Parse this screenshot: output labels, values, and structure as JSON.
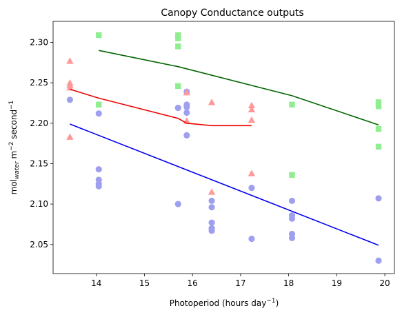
{
  "chart_data": {
    "type": "scatter",
    "title": "Canopy Conductance outputs",
    "xlabel": "Photoperiod (hours day",
    "xlabel_sup": "−1",
    "xlabel_close": ")",
    "ylabel": {
      "base": "mol",
      "sub": "water",
      "mid": " m",
      "sup1": "−2",
      "mid2": " second",
      "sup2": "−1"
    },
    "xlim": [
      13.1,
      20.2
    ],
    "ylim": [
      2.014,
      2.326
    ],
    "x_ticks": [
      14,
      15,
      16,
      17,
      18,
      19,
      20
    ],
    "y_ticks": [
      2.05,
      2.1,
      2.15,
      2.2,
      2.25,
      2.3
    ],
    "y_tick_labels": [
      "2.05",
      "2.10",
      "2.15",
      "2.20",
      "2.25",
      "2.30"
    ],
    "grid": false,
    "legend": "none",
    "series": [
      {
        "marker": "circle",
        "color": "#9f9fef",
        "points": [
          [
            13.45,
            2.229
          ],
          [
            14.05,
            2.212
          ],
          [
            14.05,
            2.143
          ],
          [
            14.05,
            2.13
          ],
          [
            14.05,
            2.125
          ],
          [
            14.05,
            2.122
          ],
          [
            15.7,
            2.219
          ],
          [
            15.7,
            2.1
          ],
          [
            15.88,
            2.239
          ],
          [
            15.88,
            2.223
          ],
          [
            15.88,
            2.22
          ],
          [
            15.88,
            2.213
          ],
          [
            15.88,
            2.185
          ],
          [
            16.4,
            2.104
          ],
          [
            16.4,
            2.096
          ],
          [
            16.4,
            2.077
          ],
          [
            16.4,
            2.07
          ],
          [
            16.4,
            2.067
          ],
          [
            17.23,
            2.12
          ],
          [
            17.23,
            2.057
          ],
          [
            18.07,
            2.104
          ],
          [
            18.07,
            2.086
          ],
          [
            18.07,
            2.082
          ],
          [
            18.07,
            2.063
          ],
          [
            18.07,
            2.058
          ],
          [
            19.87,
            2.107
          ],
          [
            19.87,
            2.03
          ]
        ]
      },
      {
        "marker": "triangle",
        "color": "#ff9999",
        "points": [
          [
            13.45,
            2.277
          ],
          [
            13.45,
            2.25
          ],
          [
            13.45,
            2.247
          ],
          [
            13.45,
            2.244
          ],
          [
            13.45,
            2.183
          ],
          [
            15.88,
            2.238
          ],
          [
            15.88,
            2.203
          ],
          [
            16.4,
            2.226
          ],
          [
            16.4,
            2.115
          ],
          [
            17.23,
            2.222
          ],
          [
            17.23,
            2.217
          ],
          [
            17.23,
            2.204
          ],
          [
            17.23,
            2.138
          ]
        ]
      },
      {
        "marker": "square",
        "color": "#90ee90",
        "points": [
          [
            14.05,
            2.309
          ],
          [
            14.05,
            2.223
          ],
          [
            15.7,
            2.309
          ],
          [
            15.7,
            2.305
          ],
          [
            15.7,
            2.295
          ],
          [
            15.7,
            2.246
          ],
          [
            18.07,
            2.223
          ],
          [
            18.07,
            2.136
          ],
          [
            19.87,
            2.226
          ],
          [
            19.87,
            2.221
          ],
          [
            19.87,
            2.193
          ],
          [
            19.87,
            2.171
          ]
        ]
      }
    ],
    "lines": [
      {
        "color": "#0000ee",
        "points": [
          [
            13.45,
            2.199
          ],
          [
            19.87,
            2.049
          ]
        ]
      },
      {
        "color": "#ee0000",
        "points": [
          [
            13.45,
            2.242
          ],
          [
            14.05,
            2.231
          ],
          [
            15.7,
            2.206
          ],
          [
            15.88,
            2.2
          ],
          [
            16.4,
            2.197
          ],
          [
            17.23,
            2.197
          ]
        ]
      },
      {
        "color": "#006400",
        "points": [
          [
            14.05,
            2.29
          ],
          [
            15.7,
            2.27
          ],
          [
            18.07,
            2.234
          ],
          [
            19.87,
            2.198
          ]
        ]
      }
    ]
  }
}
